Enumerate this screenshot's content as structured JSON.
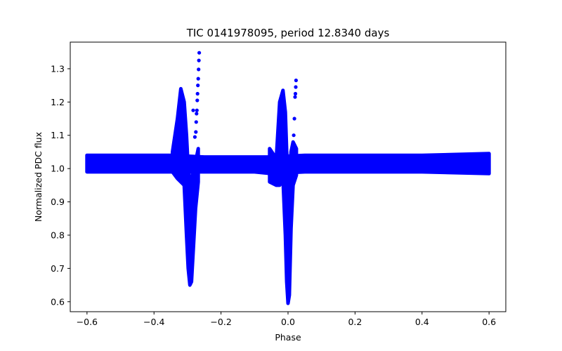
{
  "chart_data": {
    "type": "scatter",
    "title": "TIC 0141978095, period 12.8340 days",
    "xlabel": "Phase",
    "ylabel": "Normalized PDC flux",
    "xlim": [
      -0.65,
      0.65
    ],
    "ylim": [
      0.57,
      1.38
    ],
    "x_ticks": [
      -0.6,
      -0.4,
      -0.2,
      0.0,
      0.2,
      0.4,
      0.6
    ],
    "x_tick_labels": [
      "−0.6",
      "−0.4",
      "−0.2",
      "0.0",
      "0.2",
      "0.4",
      "0.6"
    ],
    "y_ticks": [
      0.6,
      0.7,
      0.8,
      0.9,
      1.0,
      1.1,
      1.2,
      1.3
    ],
    "y_tick_labels": [
      "0.6",
      "0.7",
      "0.8",
      "0.9",
      "1.0",
      "1.1",
      "1.2",
      "1.3"
    ],
    "grid": false,
    "marker_color": "#0000ff",
    "series": [
      {
        "label": "baseline band",
        "band": [
          {
            "x": -0.6,
            "low": 0.99,
            "high": 1.04
          },
          {
            "x": -0.45,
            "low": 0.99,
            "high": 1.04
          },
          {
            "x": -0.35,
            "low": 0.99,
            "high": 1.04
          },
          {
            "x": -0.25,
            "low": 0.99,
            "high": 1.035
          },
          {
            "x": -0.1,
            "low": 0.99,
            "high": 1.035
          },
          {
            "x": -0.05,
            "low": 0.985,
            "high": 1.035
          },
          {
            "x": 0.05,
            "low": 0.99,
            "high": 1.04
          },
          {
            "x": 0.2,
            "low": 0.99,
            "high": 1.04
          },
          {
            "x": 0.4,
            "low": 0.99,
            "high": 1.04
          },
          {
            "x": 0.6,
            "low": 0.985,
            "high": 1.045
          }
        ]
      },
      {
        "label": "primary eclipse region",
        "band": [
          {
            "x": -0.345,
            "low": 0.99,
            "high": 1.05
          },
          {
            "x": -0.33,
            "low": 0.97,
            "high": 1.15
          },
          {
            "x": -0.32,
            "low": 0.96,
            "high": 1.24
          },
          {
            "x": -0.31,
            "low": 0.95,
            "high": 1.2
          },
          {
            "x": -0.303,
            "low": 0.8,
            "high": 1.1
          },
          {
            "x": -0.298,
            "low": 0.7,
            "high": 1.0
          },
          {
            "x": -0.293,
            "low": 0.65,
            "high": 0.95
          },
          {
            "x": -0.288,
            "low": 0.66,
            "high": 0.96
          },
          {
            "x": -0.283,
            "low": 0.75,
            "high": 1.0
          },
          {
            "x": -0.276,
            "low": 0.88,
            "high": 1.02
          },
          {
            "x": -0.268,
            "low": 0.96,
            "high": 1.06
          }
        ]
      },
      {
        "label": "secondary eclipse region",
        "band": [
          {
            "x": -0.055,
            "low": 0.96,
            "high": 1.06
          },
          {
            "x": -0.035,
            "low": 0.95,
            "high": 1.03
          },
          {
            "x": -0.025,
            "low": 0.95,
            "high": 1.2
          },
          {
            "x": -0.015,
            "low": 0.97,
            "high": 1.235
          },
          {
            "x": -0.008,
            "low": 0.8,
            "high": 1.17
          },
          {
            "x": -0.004,
            "low": 0.66,
            "high": 1.05
          },
          {
            "x": 0.0,
            "low": 0.595,
            "high": 0.95
          },
          {
            "x": 0.004,
            "low": 0.62,
            "high": 0.96
          },
          {
            "x": 0.009,
            "low": 0.82,
            "high": 1.05
          },
          {
            "x": 0.015,
            "low": 0.95,
            "high": 1.08
          },
          {
            "x": 0.025,
            "low": 0.98,
            "high": 1.06
          }
        ]
      },
      {
        "label": "outlier points",
        "points": [
          {
            "x": -0.265,
            "y": 1.348
          },
          {
            "x": -0.266,
            "y": 1.325
          },
          {
            "x": -0.267,
            "y": 1.298
          },
          {
            "x": -0.268,
            "y": 1.27
          },
          {
            "x": -0.269,
            "y": 1.25
          },
          {
            "x": -0.27,
            "y": 1.225
          },
          {
            "x": -0.271,
            "y": 1.205
          },
          {
            "x": -0.272,
            "y": 1.175
          },
          {
            "x": -0.273,
            "y": 1.165
          },
          {
            "x": -0.274,
            "y": 1.14
          },
          {
            "x": -0.275,
            "y": 1.11
          },
          {
            "x": -0.278,
            "y": 1.095
          },
          {
            "x": -0.283,
            "y": 1.175
          },
          {
            "x": 0.024,
            "y": 1.265
          },
          {
            "x": 0.023,
            "y": 1.245
          },
          {
            "x": 0.022,
            "y": 1.225
          },
          {
            "x": 0.021,
            "y": 1.215
          },
          {
            "x": 0.019,
            "y": 1.15
          },
          {
            "x": 0.017,
            "y": 1.1
          }
        ]
      }
    ]
  }
}
